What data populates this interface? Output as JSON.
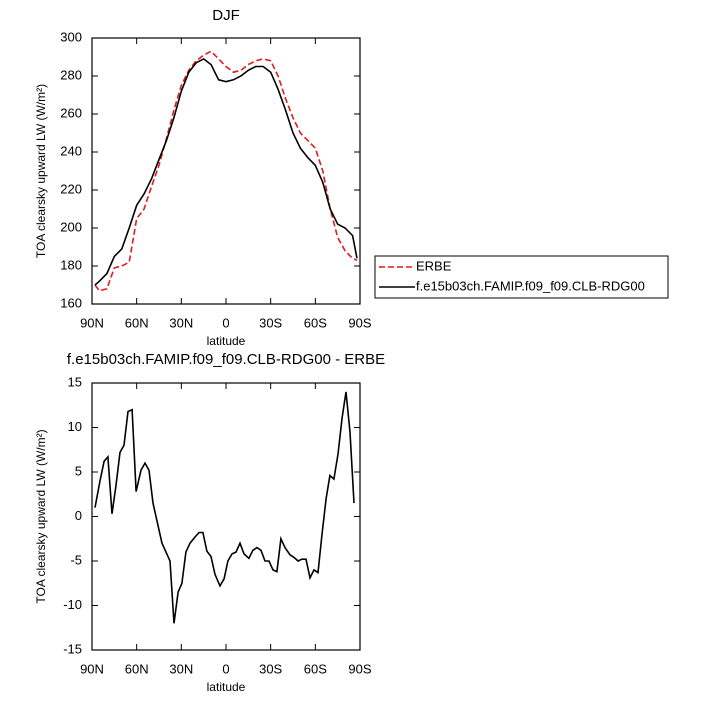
{
  "chart_data": [
    {
      "type": "line",
      "title": "DJF",
      "xlabel": "latitude",
      "ylabel": "TOA clearsky upward LW (W/m²)",
      "xlim": [
        90,
        -90
      ],
      "ylim": [
        160,
        300
      ],
      "xticks": [
        {
          "value": 90,
          "label": "90N"
        },
        {
          "value": 60,
          "label": "60N"
        },
        {
          "value": 30,
          "label": "30N"
        },
        0,
        {
          "value": -30,
          "label": "30S"
        },
        {
          "value": -60,
          "label": "60S"
        },
        {
          "value": -90,
          "label": "90S"
        }
      ],
      "yticks": [
        160,
        180,
        200,
        220,
        240,
        260,
        280,
        300
      ],
      "legend": "outside right",
      "x": [
        88,
        85,
        80,
        75,
        70,
        65,
        60,
        55,
        50,
        45,
        40,
        35,
        30,
        25,
        20,
        15,
        10,
        5,
        0,
        -5,
        -10,
        -15,
        -20,
        -25,
        -30,
        -35,
        -40,
        -45,
        -50,
        -55,
        -60,
        -65,
        -70,
        -75,
        -80,
        -85,
        -88
      ],
      "series": [
        {
          "name": "ERBE",
          "color": "#e41a1c",
          "dash": true,
          "values": [
            170,
            167,
            168,
            179,
            180,
            182,
            205,
            210,
            222,
            233,
            247,
            262,
            275,
            283,
            288,
            291,
            293,
            289,
            285,
            282,
            283,
            286,
            288,
            289,
            288,
            280,
            268,
            258,
            250,
            246,
            242,
            230,
            210,
            195,
            188,
            184,
            183
          ]
        },
        {
          "name": "f.e15b03ch.FAMIP.f09_f09.CLB-RDG00",
          "color": "#000000",
          "dash": false,
          "values": [
            170,
            172,
            176,
            185,
            189,
            200,
            212,
            218,
            226,
            236,
            246,
            258,
            272,
            282,
            287,
            289,
            286,
            278,
            277,
            278,
            280,
            283,
            285,
            285,
            282,
            273,
            262,
            250,
            242,
            237,
            233,
            224,
            210,
            202,
            200,
            196,
            184
          ]
        }
      ]
    },
    {
      "type": "line",
      "title": "f.e15b03ch.FAMIP.f09_f09.CLB-RDG00 - ERBE",
      "xlabel": "latitude",
      "ylabel": "TOA clearsky upward LW (W/m²)",
      "xlim": [
        90,
        -90
      ],
      "ylim": [
        -15,
        15
      ],
      "xticks": [
        {
          "value": 90,
          "label": "90N"
        },
        {
          "value": 60,
          "label": "60N"
        },
        {
          "value": 30,
          "label": "30N"
        },
        0,
        {
          "value": -30,
          "label": "30S"
        },
        {
          "value": -60,
          "label": "60S"
        },
        {
          "value": -90,
          "label": "90S"
        }
      ],
      "yticks": [
        -15,
        -10,
        -5,
        0,
        5,
        10,
        15
      ],
      "x": [
        88.0,
        84.6,
        81.9,
        79.3,
        76.6,
        73.9,
        71.2,
        68.5,
        65.8,
        63.1,
        60.4,
        57.1,
        54.4,
        51.7,
        49.0,
        45.7,
        43.0,
        40.3,
        37.6,
        34.9,
        32.2,
        29.6,
        26.9,
        24.2,
        20.8,
        18.1,
        15.5,
        12.8,
        10.1,
        7.4,
        4.0,
        1.3,
        -1.3,
        -4.0,
        -6.7,
        -9.4,
        -12.1,
        -15.4,
        -18.1,
        -20.8,
        -23.5,
        -26.2,
        -28.9,
        -31.6,
        -34.2,
        -36.9,
        -39.6,
        -43.0,
        -45.7,
        -48.4,
        -51.0,
        -53.7,
        -56.4,
        -59.1,
        -61.8,
        -64.5,
        -67.2,
        -69.8,
        -72.5,
        -75.2,
        -77.9,
        -80.6,
        -83.3,
        -86.0
      ],
      "series": [
        {
          "color": "#000000",
          "dash": false,
          "values": [
            1,
            4,
            6.2,
            6.7,
            0.3,
            3.5,
            7.2,
            8,
            11.8,
            12,
            2.8,
            5.2,
            6,
            5.2,
            1.5,
            -1,
            -3,
            -4,
            -5,
            -12,
            -8.5,
            -7.5,
            -4,
            -3,
            -2.3,
            -1.8,
            -1.8,
            -3.9,
            -4.5,
            -6.5,
            -7.8,
            -7,
            -5,
            -4.2,
            -4,
            -3,
            -4.2,
            -4.7,
            -3.8,
            -3.5,
            -3.8,
            -5,
            -5,
            -6,
            -6.2,
            -2.5,
            -3.5,
            -4.3,
            -4.6,
            -5,
            -4.8,
            -4.8,
            -6.9,
            -6,
            -6.3,
            -2,
            2,
            4.6,
            4.2,
            7,
            11,
            14,
            9.5,
            1.5
          ]
        }
      ]
    }
  ]
}
